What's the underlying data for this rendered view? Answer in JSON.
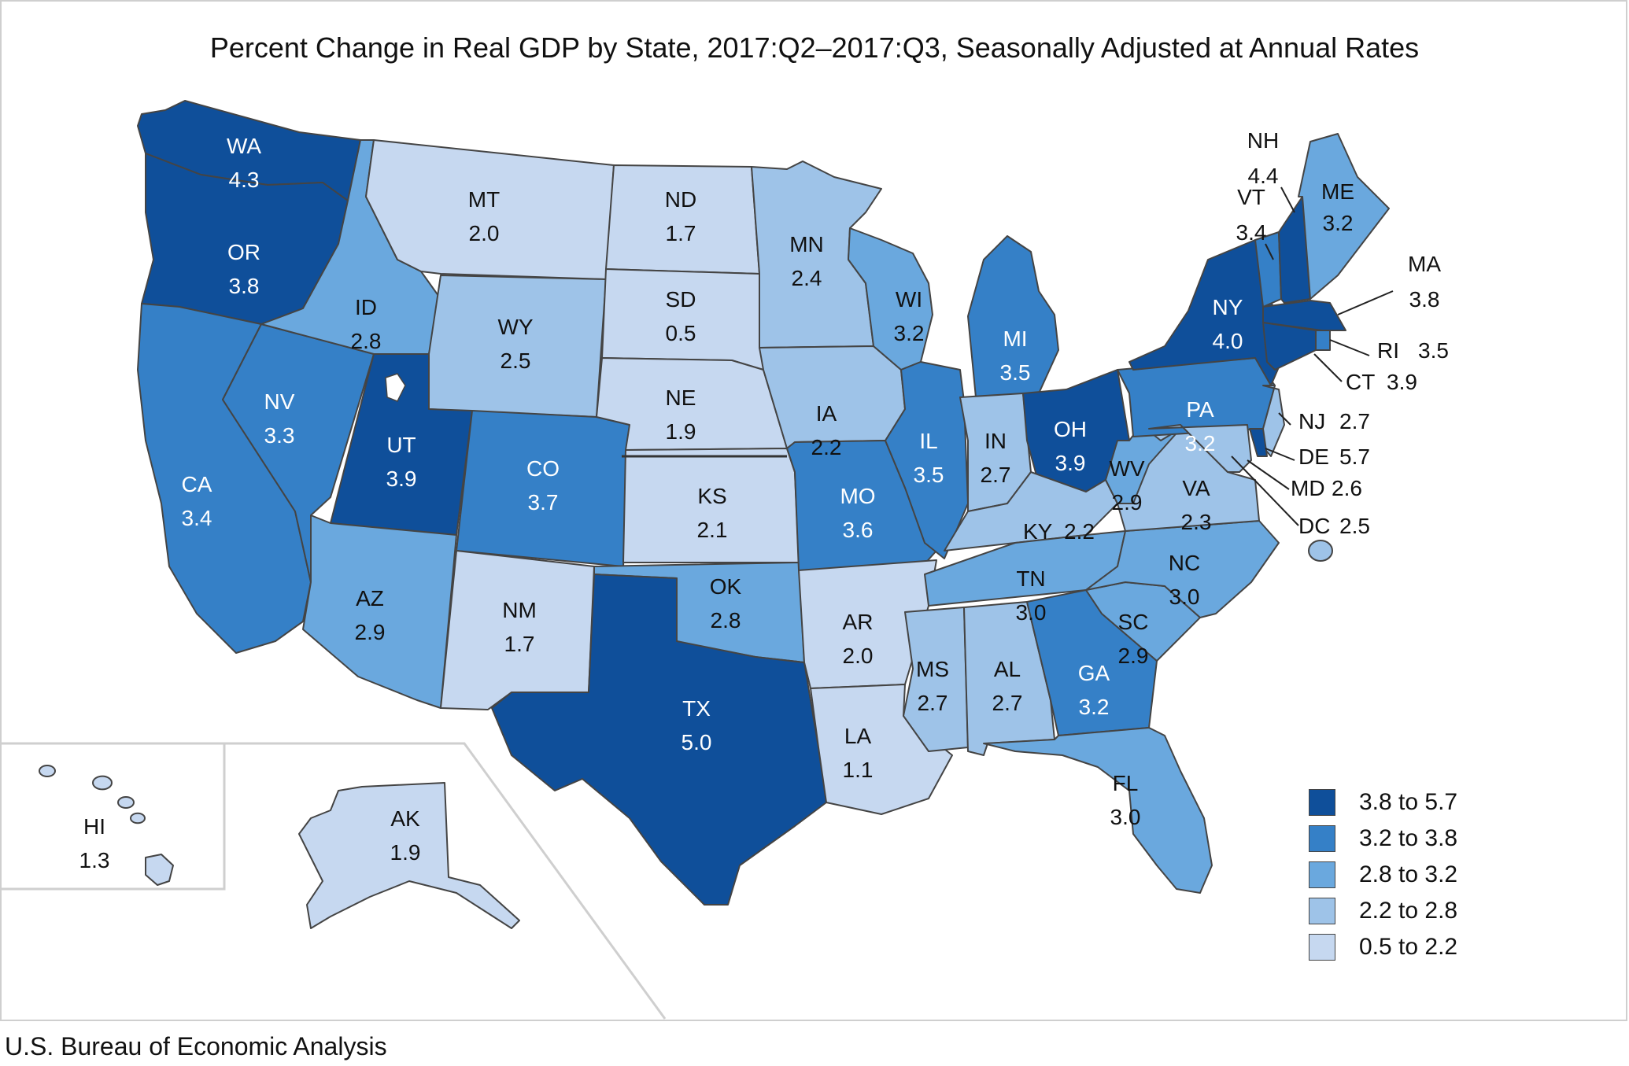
{
  "title": "Percent Change in Real GDP by State, 2017:Q2–2017:Q3, Seasonally Adjusted at Annual Rates",
  "source": "U.S. Bureau of Economic Analysis",
  "colors": {
    "bin1": "#c6d8f0",
    "bin2": "#9ec3e8",
    "bin3": "#6aa8de",
    "bin4": "#3580c7",
    "bin5": "#0f4f9a",
    "border": "#444444",
    "frame": "#cfcfcf"
  },
  "legend": [
    {
      "label": "3.8 to 5.7",
      "bin": "bin5"
    },
    {
      "label": "3.2 to 3.8",
      "bin": "bin4"
    },
    {
      "label": "2.8 to 3.2",
      "bin": "bin3"
    },
    {
      "label": "2.2 to 2.8",
      "bin": "bin2"
    },
    {
      "label": "0.5 to 2.2",
      "bin": "bin1"
    }
  ],
  "states": [
    {
      "abbr": "WA",
      "value": "4.3",
      "bin": "bin5"
    },
    {
      "abbr": "OR",
      "value": "3.8",
      "bin": "bin5"
    },
    {
      "abbr": "CA",
      "value": "3.4",
      "bin": "bin4"
    },
    {
      "abbr": "NV",
      "value": "3.3",
      "bin": "bin4"
    },
    {
      "abbr": "ID",
      "value": "2.8",
      "bin": "bin3"
    },
    {
      "abbr": "MT",
      "value": "2.0",
      "bin": "bin1"
    },
    {
      "abbr": "WY",
      "value": "2.5",
      "bin": "bin2"
    },
    {
      "abbr": "UT",
      "value": "3.9",
      "bin": "bin5"
    },
    {
      "abbr": "AZ",
      "value": "2.9",
      "bin": "bin3"
    },
    {
      "abbr": "CO",
      "value": "3.7",
      "bin": "bin4"
    },
    {
      "abbr": "NM",
      "value": "1.7",
      "bin": "bin1"
    },
    {
      "abbr": "ND",
      "value": "1.7",
      "bin": "bin1"
    },
    {
      "abbr": "SD",
      "value": "0.5",
      "bin": "bin1"
    },
    {
      "abbr": "NE",
      "value": "1.9",
      "bin": "bin1"
    },
    {
      "abbr": "KS",
      "value": "2.1",
      "bin": "bin1"
    },
    {
      "abbr": "OK",
      "value": "2.8",
      "bin": "bin3"
    },
    {
      "abbr": "TX",
      "value": "5.0",
      "bin": "bin5"
    },
    {
      "abbr": "MN",
      "value": "2.4",
      "bin": "bin2"
    },
    {
      "abbr": "IA",
      "value": "2.2",
      "bin": "bin2"
    },
    {
      "abbr": "MO",
      "value": "3.6",
      "bin": "bin4"
    },
    {
      "abbr": "AR",
      "value": "2.0",
      "bin": "bin1"
    },
    {
      "abbr": "LA",
      "value": "1.1",
      "bin": "bin1"
    },
    {
      "abbr": "WI",
      "value": "3.2",
      "bin": "bin3"
    },
    {
      "abbr": "IL",
      "value": "3.5",
      "bin": "bin4"
    },
    {
      "abbr": "MI",
      "value": "3.5",
      "bin": "bin4"
    },
    {
      "abbr": "IN",
      "value": "2.7",
      "bin": "bin2"
    },
    {
      "abbr": "OH",
      "value": "3.9",
      "bin": "bin5"
    },
    {
      "abbr": "KY",
      "value": "2.2",
      "bin": "bin2"
    },
    {
      "abbr": "TN",
      "value": "3.0",
      "bin": "bin3"
    },
    {
      "abbr": "MS",
      "value": "2.7",
      "bin": "bin2"
    },
    {
      "abbr": "AL",
      "value": "2.7",
      "bin": "bin2"
    },
    {
      "abbr": "GA",
      "value": "3.2",
      "bin": "bin4"
    },
    {
      "abbr": "FL",
      "value": "3.0",
      "bin": "bin3"
    },
    {
      "abbr": "SC",
      "value": "2.9",
      "bin": "bin3"
    },
    {
      "abbr": "NC",
      "value": "3.0",
      "bin": "bin3"
    },
    {
      "abbr": "VA",
      "value": "2.3",
      "bin": "bin2"
    },
    {
      "abbr": "WV",
      "value": "2.9",
      "bin": "bin3"
    },
    {
      "abbr": "PA",
      "value": "3.2",
      "bin": "bin4"
    },
    {
      "abbr": "NY",
      "value": "4.0",
      "bin": "bin5"
    },
    {
      "abbr": "VT",
      "value": "3.4",
      "bin": "bin4"
    },
    {
      "abbr": "NH",
      "value": "4.4",
      "bin": "bin5"
    },
    {
      "abbr": "ME",
      "value": "3.2",
      "bin": "bin3"
    },
    {
      "abbr": "MA",
      "value": "3.8",
      "bin": "bin5"
    },
    {
      "abbr": "RI",
      "value": "3.5",
      "bin": "bin4"
    },
    {
      "abbr": "CT",
      "value": "3.9",
      "bin": "bin5"
    },
    {
      "abbr": "NJ",
      "value": "2.7",
      "bin": "bin2"
    },
    {
      "abbr": "DE",
      "value": "5.7",
      "bin": "bin5"
    },
    {
      "abbr": "MD",
      "value": "2.6",
      "bin": "bin2"
    },
    {
      "abbr": "DC",
      "value": "2.5",
      "bin": "bin2"
    },
    {
      "abbr": "AK",
      "value": "1.9",
      "bin": "bin1"
    },
    {
      "abbr": "HI",
      "value": "1.3",
      "bin": "bin1"
    }
  ]
}
